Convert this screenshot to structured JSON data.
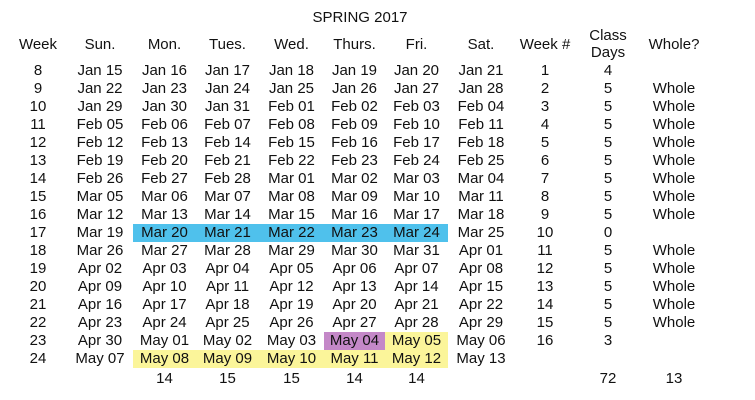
{
  "title": "SPRING 2017",
  "headers": [
    "Week",
    "Sun.",
    "Mon.",
    "Tues.",
    "Wed.",
    "Thurs.",
    "Fri.",
    "Sat.",
    "Week #",
    "Class Days",
    "Whole?"
  ],
  "rows": [
    {
      "week": "8",
      "days": [
        "Jan 15",
        "Jan 16",
        "Jan 17",
        "Jan 18",
        "Jan 19",
        "Jan 20",
        "Jan 21"
      ],
      "week_num": "1",
      "class_days": "4",
      "whole": ""
    },
    {
      "week": "9",
      "days": [
        "Jan 22",
        "Jan 23",
        "Jan 24",
        "Jan 25",
        "Jan 26",
        "Jan 27",
        "Jan 28"
      ],
      "week_num": "2",
      "class_days": "5",
      "whole": "Whole"
    },
    {
      "week": "10",
      "days": [
        "Jan 29",
        "Jan 30",
        "Jan 31",
        "Feb 01",
        "Feb 02",
        "Feb 03",
        "Feb 04"
      ],
      "week_num": "3",
      "class_days": "5",
      "whole": "Whole"
    },
    {
      "week": "11",
      "days": [
        "Feb 05",
        "Feb 06",
        "Feb 07",
        "Feb 08",
        "Feb 09",
        "Feb 10",
        "Feb 11"
      ],
      "week_num": "4",
      "class_days": "5",
      "whole": "Whole"
    },
    {
      "week": "12",
      "days": [
        "Feb 12",
        "Feb 13",
        "Feb 14",
        "Feb 15",
        "Feb 16",
        "Feb 17",
        "Feb 18"
      ],
      "week_num": "5",
      "class_days": "5",
      "whole": "Whole"
    },
    {
      "week": "13",
      "days": [
        "Feb 19",
        "Feb 20",
        "Feb 21",
        "Feb 22",
        "Feb 23",
        "Feb 24",
        "Feb 25"
      ],
      "week_num": "6",
      "class_days": "5",
      "whole": "Whole"
    },
    {
      "week": "14",
      "days": [
        "Feb 26",
        "Feb 27",
        "Feb 28",
        "Mar 01",
        "Mar 02",
        "Mar 03",
        "Mar 04"
      ],
      "week_num": "7",
      "class_days": "5",
      "whole": "Whole"
    },
    {
      "week": "15",
      "days": [
        "Mar 05",
        "Mar 06",
        "Mar 07",
        "Mar 08",
        "Mar 09",
        "Mar 10",
        "Mar 11"
      ],
      "week_num": "8",
      "class_days": "5",
      "whole": "Whole"
    },
    {
      "week": "16",
      "days": [
        "Mar 12",
        "Mar 13",
        "Mar 14",
        "Mar 15",
        "Mar 16",
        "Mar 17",
        "Mar 18"
      ],
      "week_num": "9",
      "class_days": "5",
      "whole": "Whole"
    },
    {
      "week": "17",
      "days": [
        "Mar 19",
        "Mar 20",
        "Mar 21",
        "Mar 22",
        "Mar 23",
        "Mar 24",
        "Mar 25"
      ],
      "week_num": "10",
      "class_days": "0",
      "whole": ""
    },
    {
      "week": "18",
      "days": [
        "Mar 26",
        "Mar 27",
        "Mar 28",
        "Mar 29",
        "Mar 30",
        "Mar 31",
        "Apr 01"
      ],
      "week_num": "11",
      "class_days": "5",
      "whole": "Whole"
    },
    {
      "week": "19",
      "days": [
        "Apr 02",
        "Apr 03",
        "Apr 04",
        "Apr 05",
        "Apr 06",
        "Apr 07",
        "Apr 08"
      ],
      "week_num": "12",
      "class_days": "5",
      "whole": "Whole"
    },
    {
      "week": "20",
      "days": [
        "Apr 09",
        "Apr 10",
        "Apr 11",
        "Apr 12",
        "Apr 13",
        "Apr 14",
        "Apr 15"
      ],
      "week_num": "13",
      "class_days": "5",
      "whole": "Whole"
    },
    {
      "week": "21",
      "days": [
        "Apr 16",
        "Apr 17",
        "Apr 18",
        "Apr 19",
        "Apr 20",
        "Apr 21",
        "Apr 22"
      ],
      "week_num": "14",
      "class_days": "5",
      "whole": "Whole"
    },
    {
      "week": "22",
      "days": [
        "Apr 23",
        "Apr 24",
        "Apr 25",
        "Apr 26",
        "Apr 27",
        "Apr 28",
        "Apr 29"
      ],
      "week_num": "15",
      "class_days": "5",
      "whole": "Whole"
    },
    {
      "week": "23",
      "days": [
        "Apr 30",
        "May 01",
        "May 02",
        "May 03",
        "May 04",
        "May 05",
        "May 06"
      ],
      "week_num": "16",
      "class_days": "3",
      "whole": ""
    },
    {
      "week": "24",
      "days": [
        "May 07",
        "May 08",
        "May 09",
        "May 10",
        "May 11",
        "May 12",
        "May 13"
      ],
      "week_num": "",
      "class_days": "",
      "whole": ""
    }
  ],
  "totals": {
    "mon": "14",
    "tue": "15",
    "wed": "15",
    "thu": "14",
    "fri": "14",
    "class_days": "72",
    "whole": "13"
  },
  "highlight_colors": {
    "spring_break": "#4fc1ec",
    "finals": "#fbf59a",
    "special": "#c488c8"
  }
}
